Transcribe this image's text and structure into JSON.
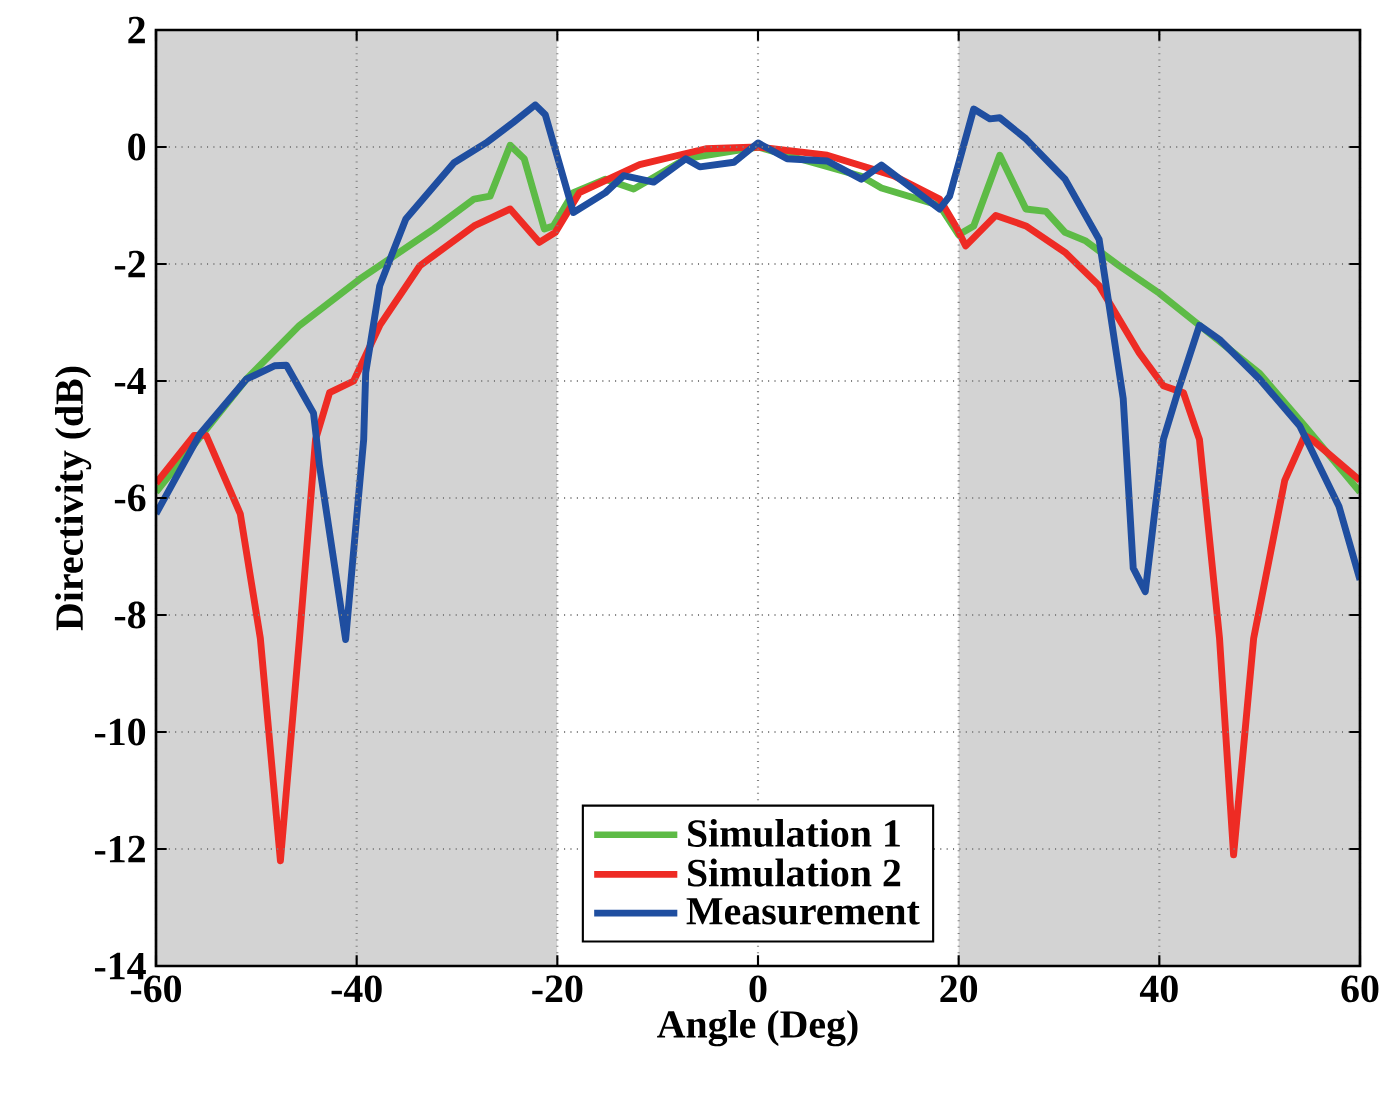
{
  "chart_data": {
    "type": "line",
    "xlabel": "Angle (Deg)",
    "ylabel": "Directivity (dB)",
    "xlim": [
      -60,
      60
    ],
    "ylim": [
      -14,
      2
    ],
    "xticks": [
      -60,
      -40,
      -20,
      0,
      20,
      40,
      60
    ],
    "yticks": [
      -14,
      -12,
      -10,
      -8,
      -6,
      -4,
      -2,
      0,
      2
    ],
    "grid": true,
    "legend": "bottom",
    "line_style": "solid",
    "marker": "none",
    "bands": [
      {
        "axis": "x",
        "from": -60,
        "to": -20,
        "color": "#d3d3d3"
      },
      {
        "axis": "x",
        "from": 20,
        "to": 60,
        "color": "#d3d3d3"
      }
    ],
    "series": [
      {
        "name": "Simulation 1",
        "color": "#5dbb46",
        "x": [
          -60,
          -51,
          -45.7,
          -39.7,
          -32.3,
          -28.3,
          -26.7,
          -24.7,
          -23.3,
          -21.3,
          -20.4,
          -18.4,
          -15.2,
          -12.4,
          -7.2,
          0,
          6.9,
          10.3,
          12.3,
          18.1,
          20,
          21.5,
          24.1,
          26.7,
          28.7,
          30.6,
          32.6,
          36,
          40,
          44,
          50,
          54.5,
          60
        ],
        "values": [
          -5.9,
          -3.97,
          -3.05,
          -2.26,
          -1.4,
          -0.89,
          -0.84,
          0.03,
          -0.2,
          -1.4,
          -1.35,
          -0.78,
          -0.55,
          -0.72,
          -0.2,
          0,
          null,
          -0.5,
          -0.7,
          -1.0,
          -1.5,
          -1.35,
          -0.14,
          -1.06,
          -1.1,
          -1.46,
          -1.6,
          -2.03,
          -2.5,
          -3.05,
          -3.87,
          -4.77,
          -5.9
        ]
      },
      {
        "name": "Simulation 2",
        "color": "#ee2b24",
        "x": [
          -60,
          -56.2,
          -55,
          -51.6,
          -49.6,
          -47.6,
          -45.7,
          -44.1,
          -42.7,
          -40.3,
          -37.7,
          -33.7,
          -28.3,
          -24.7,
          -21.8,
          -20.2,
          -17.8,
          -11.8,
          -5.2,
          0,
          6.9,
          13.5,
          18.1,
          19.7,
          20.7,
          23.7,
          26.7,
          30.6,
          34,
          38,
          40.4,
          42.4,
          44,
          46,
          47.4,
          49.4,
          52.5,
          54.5,
          55.2,
          60
        ],
        "values": [
          -5.75,
          -4.93,
          -4.93,
          -6.27,
          -8.4,
          -12.2,
          -8.4,
          -5.0,
          -4.2,
          -4.0,
          -3.05,
          -2.03,
          -1.35,
          -1.06,
          -1.63,
          -1.46,
          -0.78,
          -0.3,
          -0.03,
          0,
          -0.14,
          -0.49,
          -0.89,
          -1.35,
          -1.69,
          -1.17,
          -1.35,
          -1.8,
          -2.37,
          -3.52,
          -4.08,
          -4.2,
          -5.0,
          -8.4,
          -12.1,
          -8.4,
          -5.7,
          -4.93,
          -5.0,
          -5.7
        ]
      },
      {
        "name": "Measurement",
        "color": "#1f4ea0",
        "x": [
          -60,
          -55.6,
          -51,
          -48.2,
          -47,
          -44.3,
          -43.7,
          -41.1,
          -39.3,
          -39.1,
          -37.7,
          -35.1,
          -30.3,
          -27.1,
          -24.4,
          -22.2,
          -21.2,
          -18.4,
          -15.2,
          -13.4,
          -10.4,
          -7.2,
          -5.8,
          -2.4,
          0,
          2.9,
          6.9,
          10.3,
          12.3,
          18.1,
          19.1,
          21.5,
          23.1,
          24.1,
          26.7,
          30.6,
          34,
          36.4,
          37.4,
          38.6,
          40.4,
          42,
          44,
          46,
          50,
          54,
          57.9,
          60
        ],
        "values": [
          -6.27,
          -4.9,
          -3.97,
          -3.74,
          -3.73,
          -4.55,
          -5.45,
          -8.42,
          -5.0,
          -3.86,
          -2.37,
          -1.23,
          -0.27,
          0.07,
          0.42,
          0.72,
          0.55,
          -1.12,
          -0.78,
          -0.49,
          -0.6,
          -0.2,
          -0.34,
          -0.26,
          0.07,
          -0.2,
          -0.24,
          -0.55,
          -0.31,
          -1.06,
          -0.84,
          0.65,
          0.48,
          0.5,
          0.14,
          -0.55,
          -1.58,
          -4.3,
          -7.2,
          -7.6,
          -5.0,
          -4.1,
          -3.05,
          -3.29,
          -3.97,
          -4.77,
          -6.14,
          -7.4
        ]
      }
    ]
  }
}
